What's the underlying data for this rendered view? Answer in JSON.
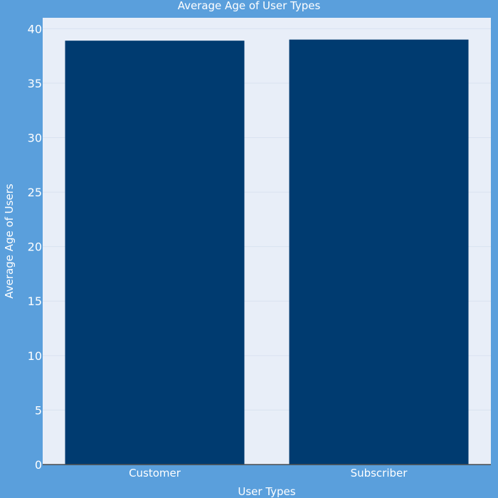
{
  "chart_data": {
    "type": "bar",
    "title": "Average Age of User Types",
    "xlabel": "User Types",
    "ylabel": "Average Age of Users",
    "categories": [
      "Customer",
      "Subscriber"
    ],
    "values": [
      38.9,
      39.0
    ],
    "ylim": [
      0,
      41
    ],
    "yticks": [
      "0",
      "5",
      "10",
      "15",
      "20",
      "25",
      "30",
      "35",
      "40"
    ],
    "ytick_values": [
      0,
      5,
      10,
      15,
      20,
      25,
      30,
      35,
      40
    ],
    "grid": true,
    "legend": "none",
    "colors": {
      "background": "#5a9fdc",
      "plot_background": "#e8eef8",
      "bar": "#003b70",
      "grid": "#d9e2f0",
      "text": "#ffffff"
    }
  }
}
